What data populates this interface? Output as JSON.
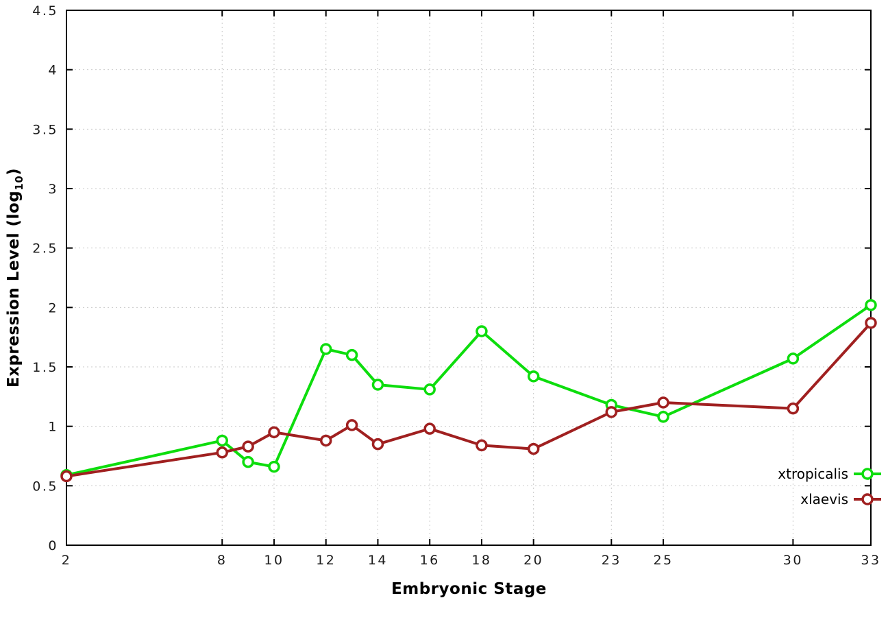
{
  "chart_data": {
    "type": "line",
    "title": "",
    "xlabel": "Embryonic Stage",
    "ylabel": "Expression Level (log10)",
    "ylabel_main": "Expression Level (log",
    "ylabel_sub": "10",
    "ylabel_end": ")",
    "xlim": [
      2,
      33
    ],
    "ylim": [
      0,
      4.5
    ],
    "grid": true,
    "legend_position": "inside-bottom-right",
    "x_ticks": [
      2,
      8,
      10,
      12,
      14,
      16,
      18,
      20,
      23,
      25,
      30,
      33
    ],
    "x_tick_labels": [
      "2",
      "8",
      "10",
      "12",
      "14",
      "16",
      "18",
      "20",
      "23",
      "25",
      "30",
      "33"
    ],
    "y_ticks": [
      0,
      0.5,
      1,
      1.5,
      2,
      2.5,
      3,
      3.5,
      4,
      4.5
    ],
    "y_tick_labels": [
      "0",
      "0.5",
      "1",
      "1.5",
      "2",
      "2.5",
      "3",
      "3.5",
      "4",
      "4.5"
    ],
    "x": [
      2,
      8,
      9,
      10,
      12,
      13,
      14,
      16,
      18,
      20,
      23,
      25,
      30,
      33
    ],
    "series": [
      {
        "name": "xtropicalis",
        "color": "#0ddd0d",
        "values": [
          0.59,
          0.88,
          0.7,
          0.66,
          1.65,
          1.6,
          1.35,
          1.31,
          1.8,
          1.42,
          1.18,
          1.08,
          1.57,
          2.02
        ]
      },
      {
        "name": "xlaevis",
        "color": "#a02020",
        "values": [
          0.58,
          0.78,
          0.83,
          0.95,
          0.88,
          1.01,
          0.85,
          0.98,
          0.84,
          0.81,
          1.12,
          1.2,
          1.15,
          1.87
        ]
      }
    ],
    "style": {
      "grid_color": "#c9c9c9",
      "border_color": "#000000",
      "tick_label_color": "#1a1a1a",
      "marker_fill": "#ffffff"
    }
  }
}
